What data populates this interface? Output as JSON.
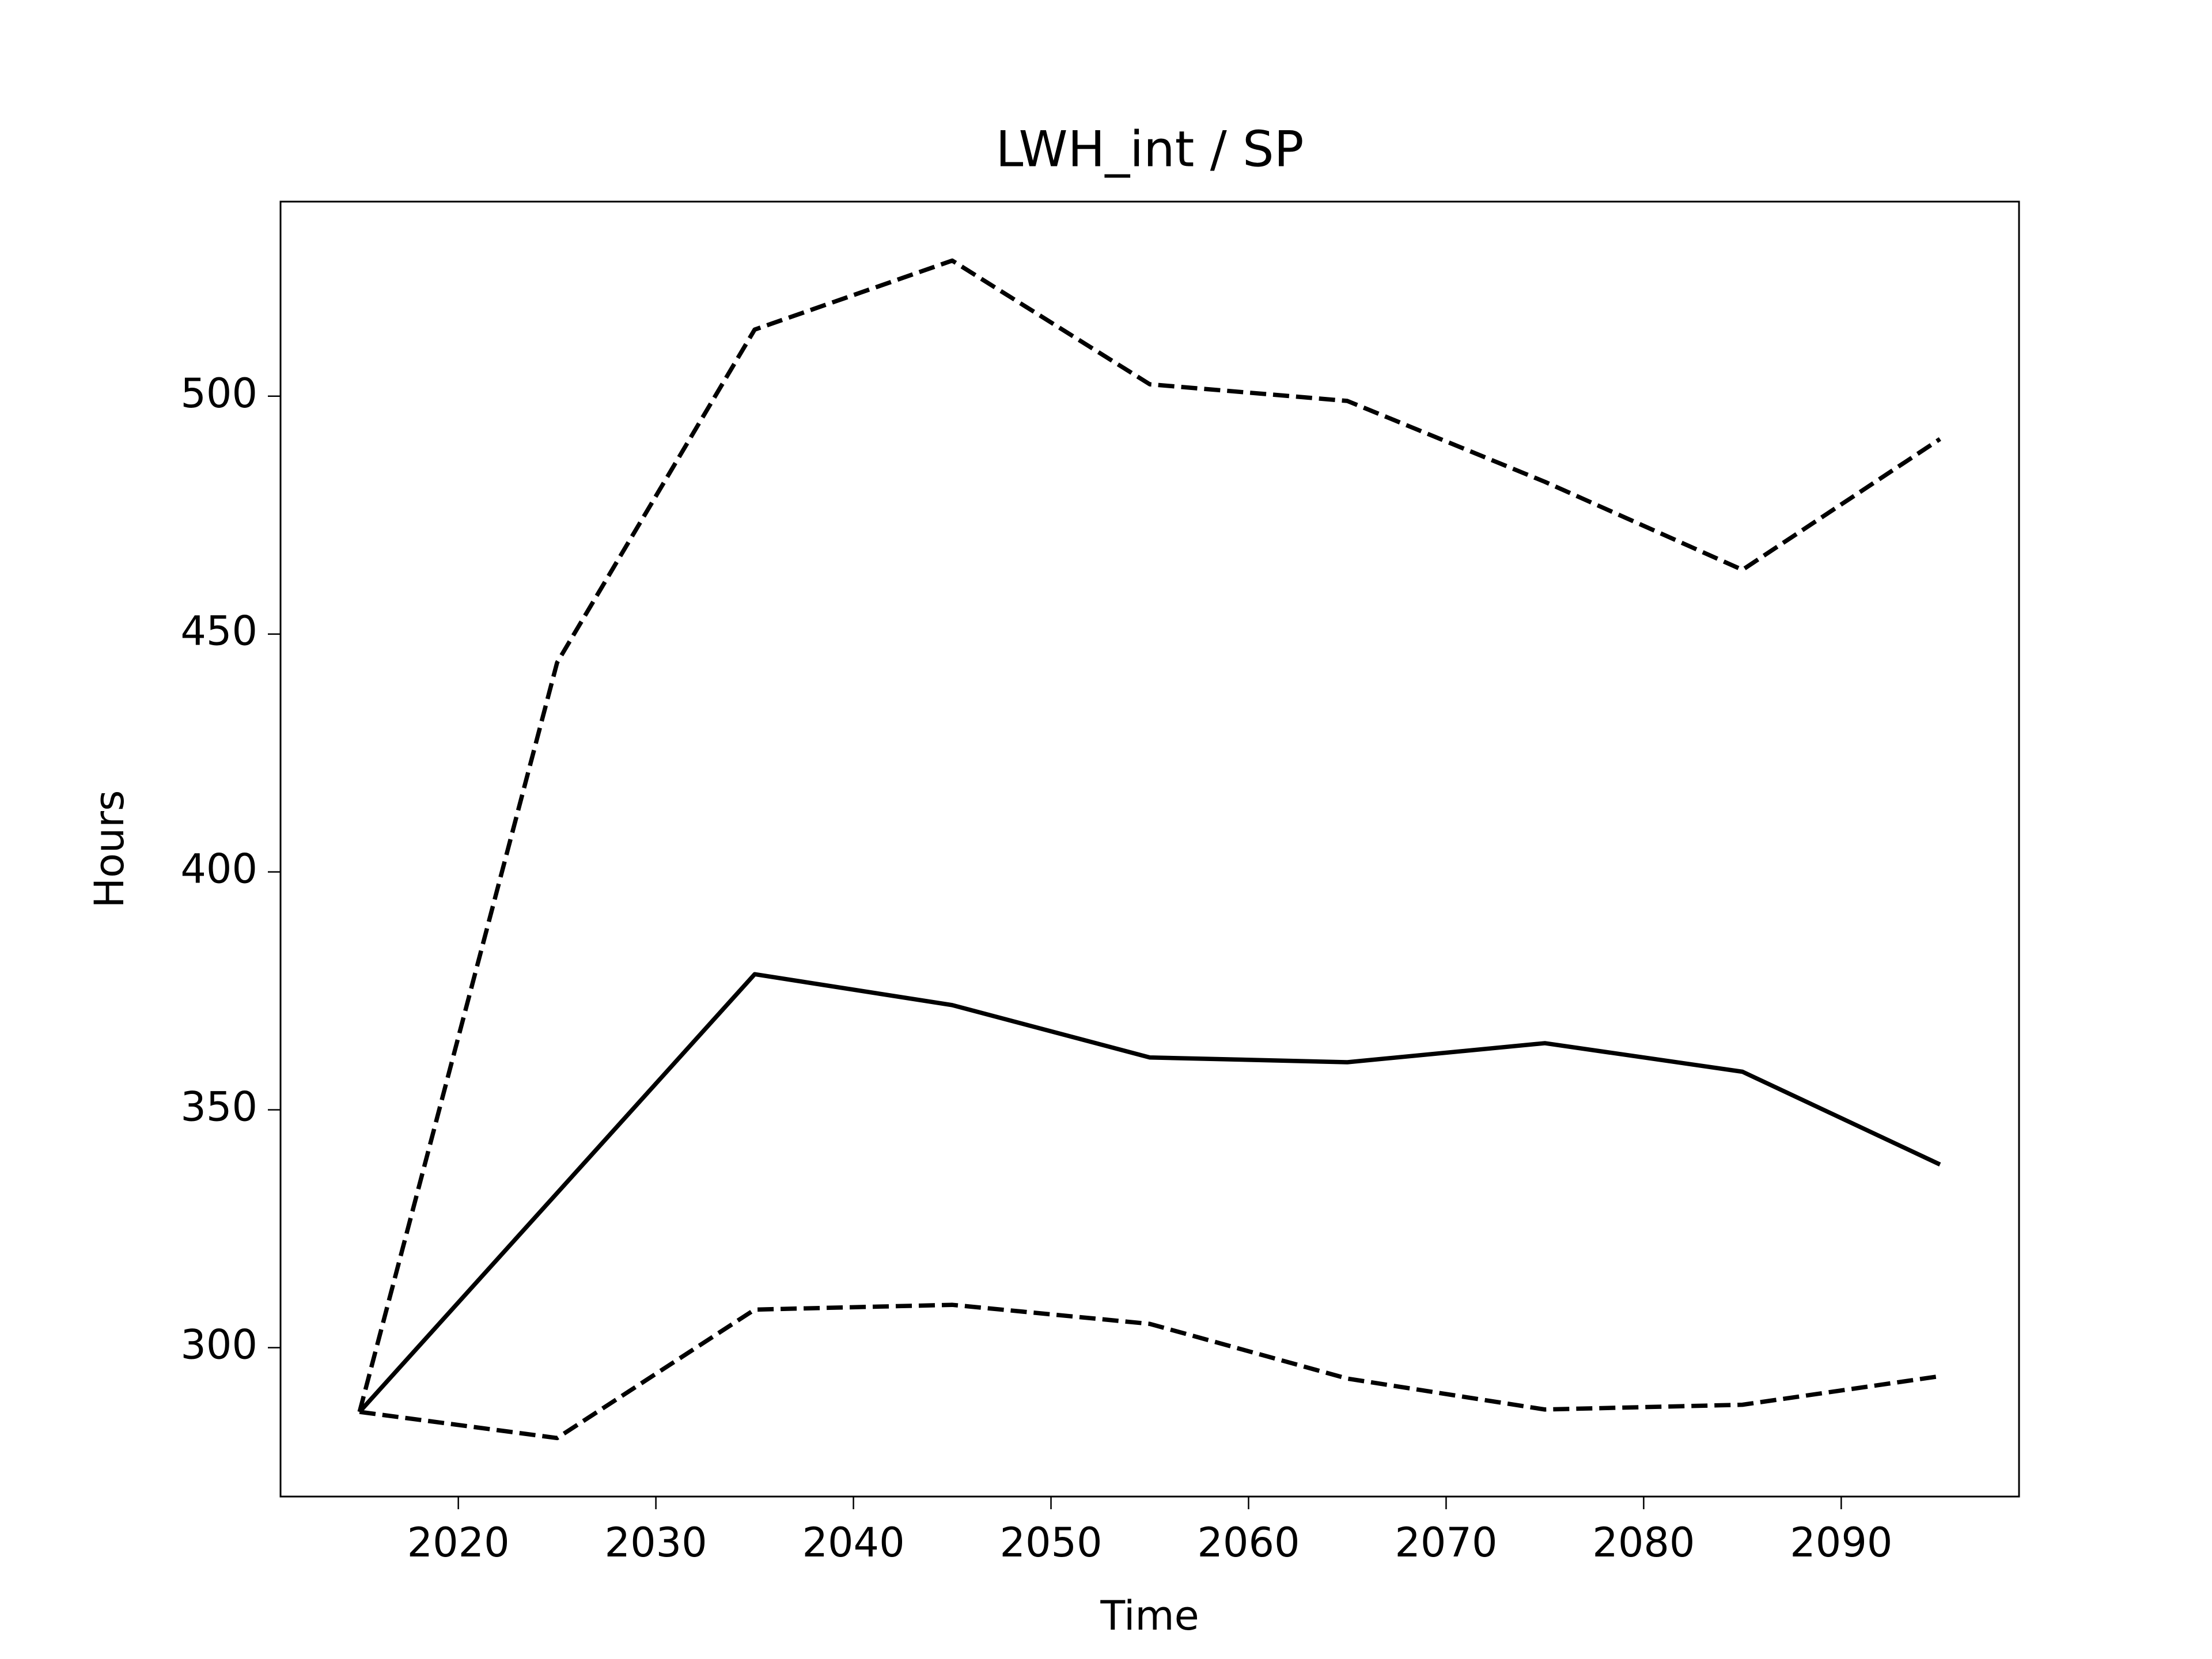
{
  "chart_data": {
    "type": "line",
    "title": "LWH_int / SP",
    "xlabel": "Time",
    "ylabel": "Hours",
    "x": [
      2015,
      2025,
      2035,
      2045,
      2055,
      2065,
      2075,
      2085,
      2095
    ],
    "series": [
      {
        "color": "#000000",
        "linestyle": "dashed",
        "values": [
          286.5,
          444,
          514,
          528.5,
          502.5,
          499,
          482,
          463.5,
          491
        ]
      },
      {
        "color": "#000000",
        "linestyle": "solid",
        "values": [
          286.5,
          332.5,
          378.5,
          372,
          361,
          360,
          364,
          358,
          338.5
        ]
      },
      {
        "color": "#000000",
        "linestyle": "dashed",
        "values": [
          286.5,
          281,
          308,
          309,
          305,
          293.5,
          287,
          288,
          294
        ]
      }
    ],
    "xlim": [
      2011,
      2099
    ],
    "ylim": [
      268.7,
      540.9
    ],
    "xticks": [
      2020,
      2030,
      2040,
      2050,
      2060,
      2070,
      2080,
      2090
    ],
    "yticks": [
      300,
      350,
      400,
      450,
      500
    ],
    "grid": false
  }
}
